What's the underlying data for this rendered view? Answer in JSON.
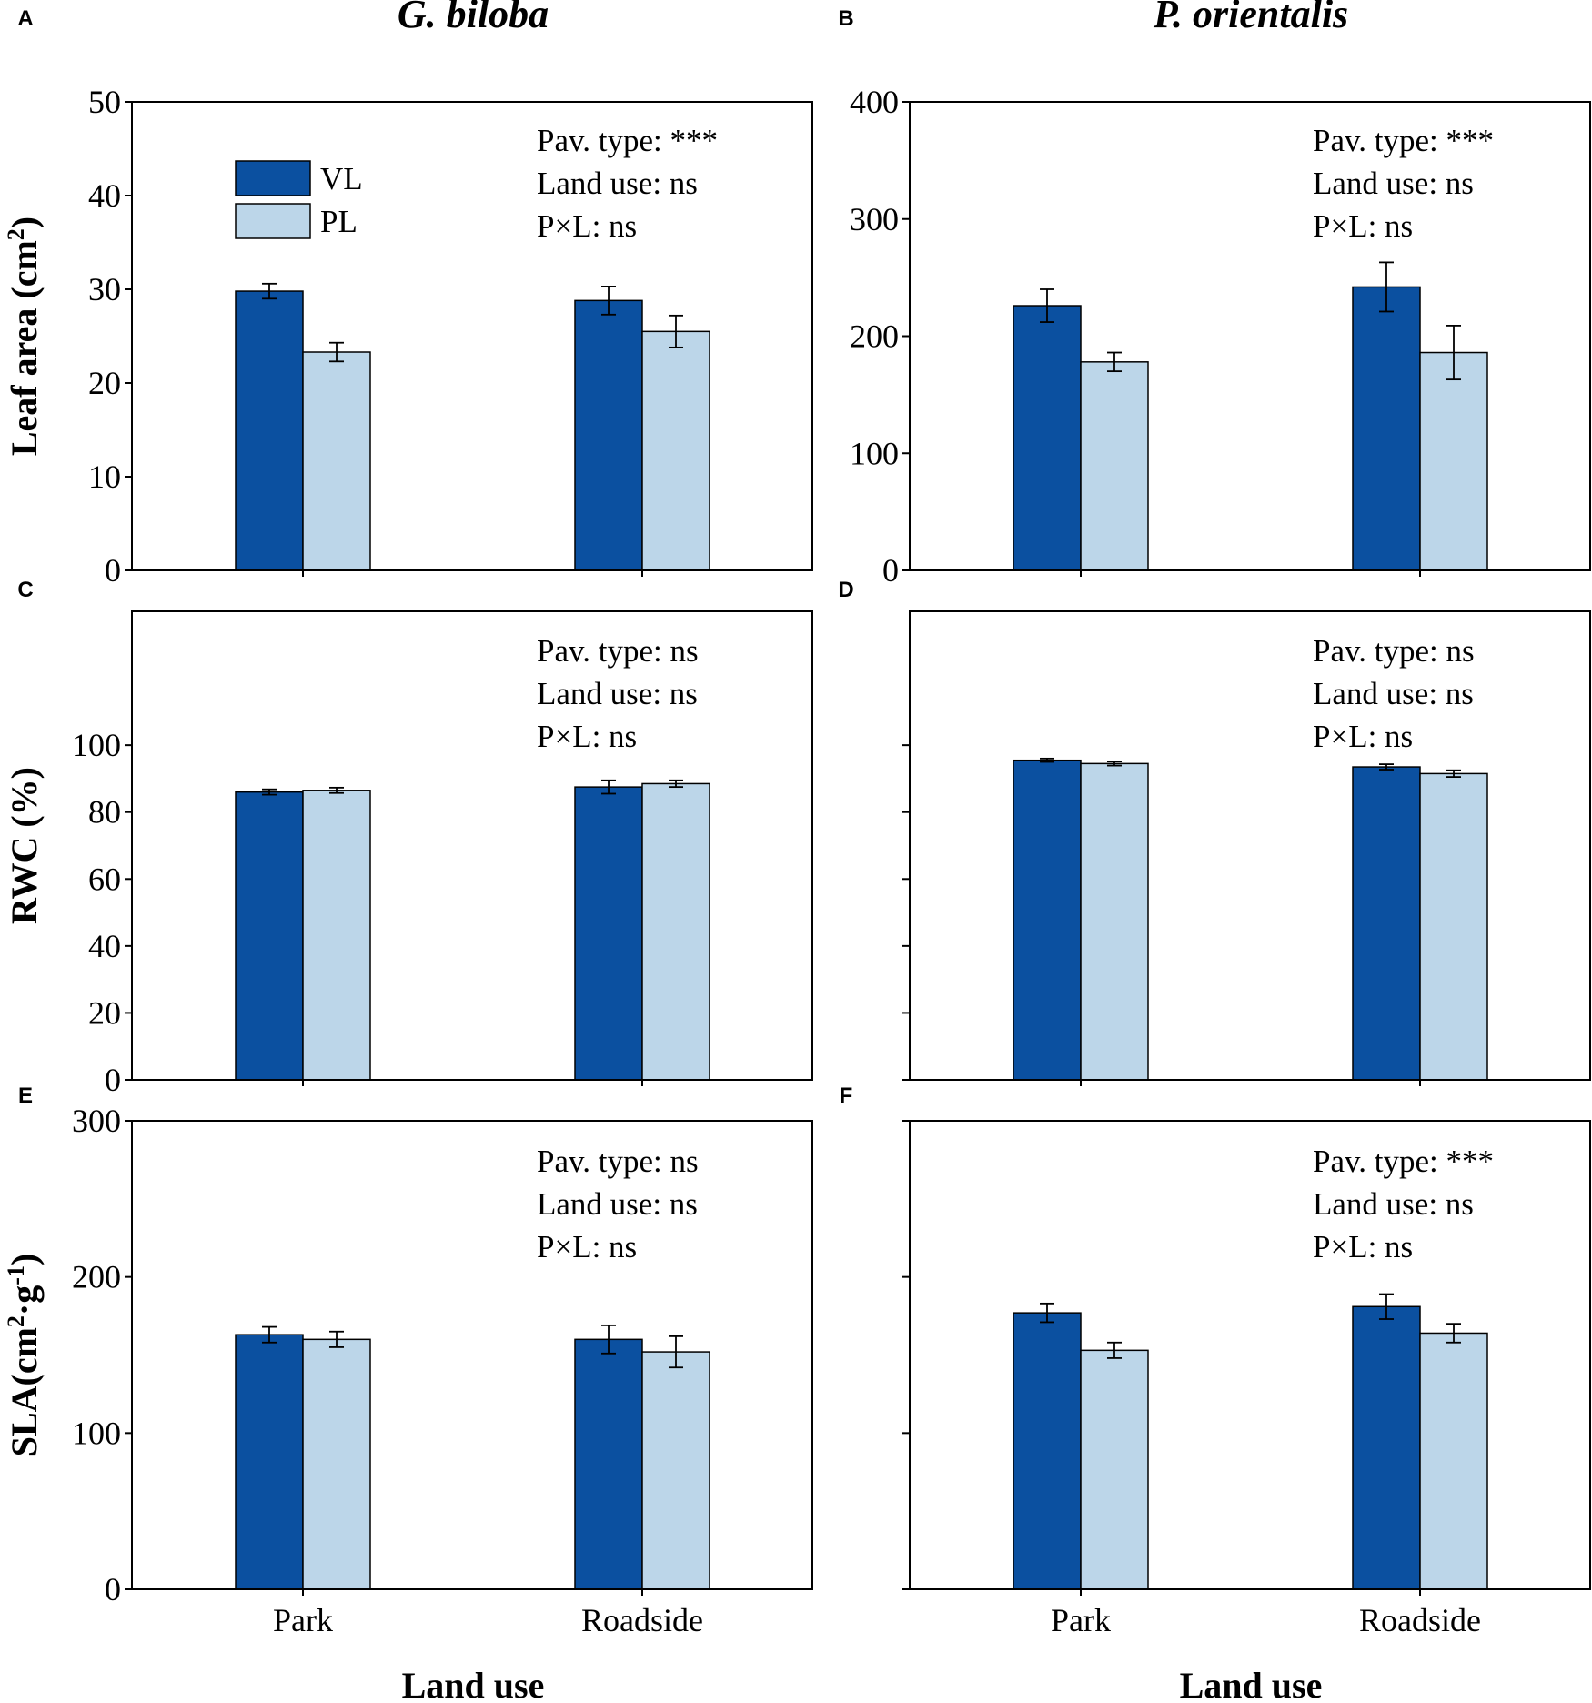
{
  "figure": {
    "columns": [
      {
        "title": "G. biloba"
      },
      {
        "title": "P. orientalis"
      }
    ],
    "x_axis_title": "Land use"
  },
  "colors": {
    "VL": "#0b50a0",
    "PL": "#bcd6e9",
    "axis": "#000000"
  },
  "legend": {
    "entries": [
      {
        "name": "VL",
        "color": "#0b50a0"
      },
      {
        "name": "PL",
        "color": "#bcd6e9"
      }
    ],
    "placement": "top-left of panel A"
  },
  "rows": [
    {
      "ylabel_parts": [
        {
          "t": "Leaf area (cm",
          "sup": false
        },
        {
          "t": "2",
          "sup": true
        },
        {
          "t": ")",
          "sup": false
        }
      ]
    },
    {
      "ylabel_parts": [
        {
          "t": "RWC (%)",
          "sup": false
        }
      ]
    },
    {
      "ylabel_parts": [
        {
          "t": "SLA(cm",
          "sup": false
        },
        {
          "t": "2",
          "sup": true
        },
        {
          "t": "·g",
          "sup": false
        },
        {
          "t": "-1",
          "sup": true
        },
        {
          "t": ")",
          "sup": false
        }
      ]
    }
  ],
  "chart_data": [
    {
      "panel": "A",
      "type": "bar",
      "species": "G. biloba",
      "categories": [
        "Park",
        "Roadside"
      ],
      "show_category_labels": false,
      "ylim": [
        0,
        50
      ],
      "yticks": [
        0,
        10,
        20,
        30,
        40,
        50
      ],
      "show_tick_labels": true,
      "series": [
        {
          "name": "VL",
          "values": [
            29.8,
            28.8
          ],
          "errors": [
            0.8,
            1.5
          ]
        },
        {
          "name": "PL",
          "values": [
            23.3,
            25.5
          ],
          "errors": [
            1.0,
            1.7
          ]
        }
      ],
      "stats": [
        "Pav. type: ***",
        "Land use: ns",
        "P×L: ns"
      ],
      "show_legend": true
    },
    {
      "panel": "B",
      "type": "bar",
      "species": "P. orientalis",
      "categories": [
        "Park",
        "Roadside"
      ],
      "show_category_labels": false,
      "ylim": [
        0,
        400
      ],
      "yticks": [
        0,
        100,
        200,
        300,
        400
      ],
      "show_tick_labels": true,
      "series": [
        {
          "name": "VL",
          "values": [
            226,
            242
          ],
          "errors": [
            14,
            21
          ]
        },
        {
          "name": "PL",
          "values": [
            178,
            186
          ],
          "errors": [
            8,
            23
          ]
        }
      ],
      "stats": [
        "Pav. type: ***",
        "Land use: ns",
        "P×L: ns"
      ],
      "show_legend": false
    },
    {
      "panel": "C",
      "type": "bar",
      "species": "G. biloba",
      "categories": [
        "Park",
        "Roadside"
      ],
      "show_category_labels": false,
      "ylim": [
        0,
        140
      ],
      "yticks": [
        0,
        20,
        40,
        60,
        80,
        100
      ],
      "show_tick_labels": true,
      "series": [
        {
          "name": "VL",
          "values": [
            86,
            87.5
          ],
          "errors": [
            0.8,
            2.0
          ]
        },
        {
          "name": "PL",
          "values": [
            86.5,
            88.5
          ],
          "errors": [
            0.8,
            1.0
          ]
        }
      ],
      "stats": [
        "Pav. type: ns",
        "Land use: ns",
        "P×L: ns"
      ],
      "show_legend": false
    },
    {
      "panel": "D",
      "type": "bar",
      "species": "P. orientalis",
      "categories": [
        "Park",
        "Roadside"
      ],
      "show_category_labels": false,
      "ylim": [
        0,
        140
      ],
      "yticks": [
        0,
        20,
        40,
        60,
        80,
        100
      ],
      "show_tick_labels": false,
      "series": [
        {
          "name": "VL",
          "values": [
            95.5,
            93.5
          ],
          "errors": [
            0.5,
            0.8
          ]
        },
        {
          "name": "PL",
          "values": [
            94.5,
            91.5
          ],
          "errors": [
            0.6,
            1.0
          ]
        }
      ],
      "stats": [
        "Pav. type: ns",
        "Land use: ns",
        "P×L: ns"
      ],
      "show_legend": false
    },
    {
      "panel": "E",
      "type": "bar",
      "species": "G. biloba",
      "categories": [
        "Park",
        "Roadside"
      ],
      "show_category_labels": true,
      "ylim": [
        0,
        300
      ],
      "yticks": [
        0,
        100,
        200,
        300
      ],
      "show_tick_labels": true,
      "series": [
        {
          "name": "VL",
          "values": [
            163,
            160
          ],
          "errors": [
            5,
            9
          ]
        },
        {
          "name": "PL",
          "values": [
            160,
            152
          ],
          "errors": [
            5,
            10
          ]
        }
      ],
      "stats": [
        "Pav. type: ns",
        "Land use: ns",
        "P×L: ns"
      ],
      "show_legend": false
    },
    {
      "panel": "F",
      "type": "bar",
      "species": "P. orientalis",
      "categories": [
        "Park",
        "Roadside"
      ],
      "show_category_labels": true,
      "ylim": [
        0,
        300
      ],
      "yticks": [
        0,
        100,
        200,
        300
      ],
      "show_tick_labels": false,
      "series": [
        {
          "name": "VL",
          "values": [
            177,
            181
          ],
          "errors": [
            6,
            8
          ]
        },
        {
          "name": "PL",
          "values": [
            153,
            164
          ],
          "errors": [
            5,
            6
          ]
        }
      ],
      "stats": [
        "Pav. type: ***",
        "Land use: ns",
        "P×L: ns"
      ],
      "show_legend": false
    }
  ]
}
